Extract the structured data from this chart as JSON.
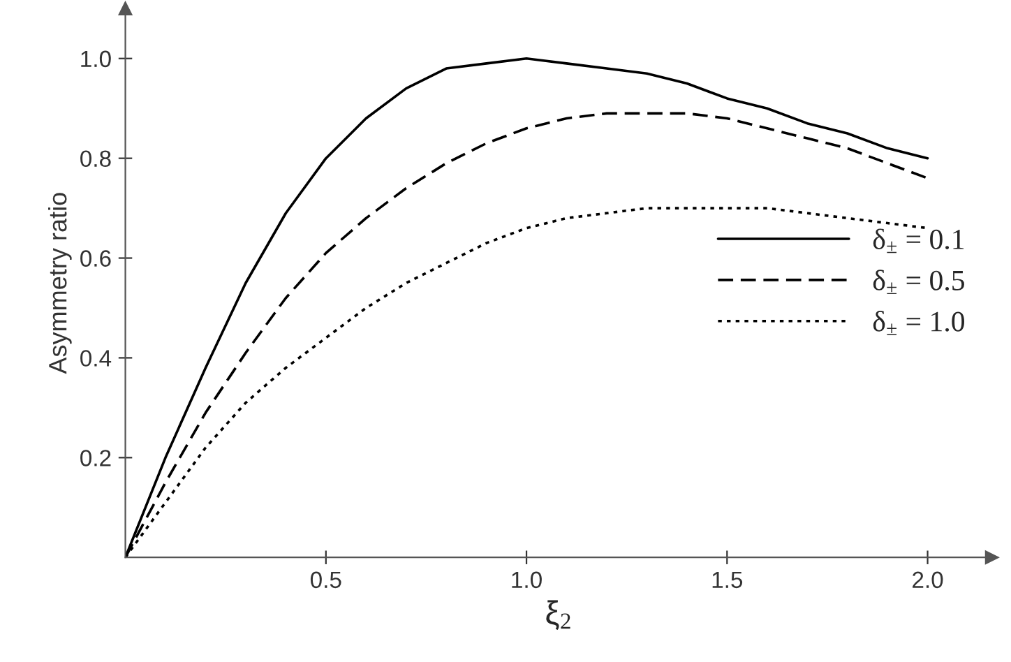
{
  "chart_data": {
    "type": "line",
    "xlabel": "ξ$_{2}$",
    "ylabel": "Asymmetry ratio",
    "x": [
      0,
      0.1,
      0.2,
      0.3,
      0.4,
      0.5,
      0.6,
      0.7,
      0.8,
      0.9,
      1.0,
      1.1,
      1.2,
      1.3,
      1.4,
      1.5,
      1.6,
      1.7,
      1.8,
      1.9,
      2.0
    ],
    "series": [
      {
        "name": "δ$_{±}$ = 0.1",
        "color": "#000000",
        "line_style": "solid",
        "values": [
          0,
          0.2,
          0.38,
          0.55,
          0.69,
          0.8,
          0.88,
          0.94,
          0.98,
          0.99,
          1.0,
          0.99,
          0.98,
          0.97,
          0.95,
          0.92,
          0.9,
          0.87,
          0.85,
          0.82,
          0.8
        ]
      },
      {
        "name": "δ$_{±}$ = 0.5",
        "color": "#000000",
        "line_style": "dashed",
        "values": [
          0,
          0.15,
          0.29,
          0.41,
          0.52,
          0.61,
          0.68,
          0.74,
          0.79,
          0.83,
          0.86,
          0.88,
          0.89,
          0.89,
          0.89,
          0.88,
          0.86,
          0.84,
          0.82,
          0.79,
          0.76
        ]
      },
      {
        "name": "δ$_{±}$ = 1.0",
        "color": "#000000",
        "line_style": "dotted",
        "values": [
          0,
          0.11,
          0.22,
          0.31,
          0.38,
          0.44,
          0.5,
          0.55,
          0.59,
          0.63,
          0.66,
          0.68,
          0.69,
          0.7,
          0.7,
          0.7,
          0.7,
          0.69,
          0.68,
          0.67,
          0.66
        ]
      }
    ],
    "xlim": [
      0,
      2.16
    ],
    "ylim": [
      0,
      1.1
    ],
    "xticks": [
      0.5,
      {
        "value": 1,
        "label": "1.0"
      },
      1.5,
      {
        "value": 2,
        "label": "2.0"
      }
    ],
    "yticks": [
      0.2,
      0.4,
      0.6,
      0.8,
      {
        "value": 1,
        "label": "1.0"
      }
    ],
    "legend": "center right",
    "grid": false
  }
}
